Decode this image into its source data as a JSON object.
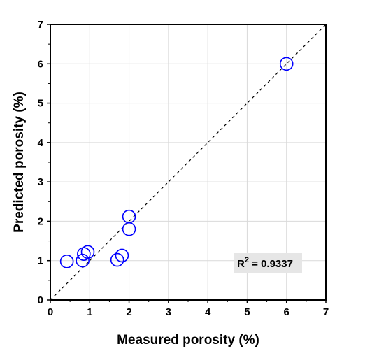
{
  "chart_data": {
    "type": "scatter",
    "title": "",
    "xlabel": "Measured porosity (%)",
    "ylabel": "Predicted porosity (%)",
    "xlim": [
      0,
      7
    ],
    "ylim": [
      0,
      7
    ],
    "xticks": [
      0,
      1,
      2,
      3,
      4,
      5,
      6,
      7
    ],
    "yticks": [
      0,
      1,
      2,
      3,
      4,
      5,
      6,
      7
    ],
    "grid": true,
    "reference_line": "y = x, dashed",
    "marker": "open circle",
    "marker_color": "#0000ff",
    "series": [
      {
        "points": [
          {
            "x": 0.42,
            "y": 0.98
          },
          {
            "x": 0.82,
            "y": 1.0
          },
          {
            "x": 0.85,
            "y": 1.17
          },
          {
            "x": 0.95,
            "y": 1.22
          },
          {
            "x": 1.7,
            "y": 1.02
          },
          {
            "x": 1.82,
            "y": 1.13
          },
          {
            "x": 2.0,
            "y": 1.8
          },
          {
            "x": 2.0,
            "y": 2.12
          },
          {
            "x": 6.0,
            "y": 6.0
          }
        ]
      }
    ],
    "annotation": {
      "prefix": "R",
      "superscript": "2",
      "suffix": " = 0.9337",
      "position": "bottom-right"
    }
  }
}
